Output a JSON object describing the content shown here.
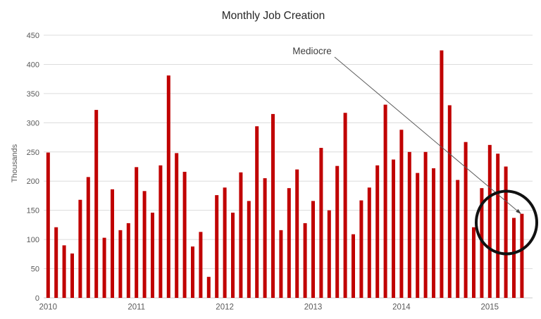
{
  "chart_data": {
    "type": "bar",
    "title": "Monthly Job Creation",
    "ylabel": "Thousands",
    "ylim": [
      0,
      450
    ],
    "y_tick_step": 50,
    "y_ticks": [
      450,
      400,
      350,
      300,
      250,
      200,
      150,
      100,
      50,
      0
    ],
    "x_year_labels": [
      "2010",
      "2011",
      "2012",
      "2013",
      "2014",
      "2015"
    ],
    "x_year_label_bar_index": [
      0,
      11,
      22,
      33,
      44,
      55
    ],
    "values": [
      249,
      121,
      90,
      76,
      168,
      207,
      322,
      103,
      186,
      116,
      128,
      224,
      183,
      146,
      227,
      381,
      248,
      216,
      88,
      113,
      36,
      176,
      189,
      146,
      215,
      166,
      294,
      205,
      315,
      116,
      188,
      220,
      128,
      166,
      257,
      150,
      226,
      317,
      109,
      167,
      189,
      227,
      331,
      237,
      288,
      250,
      214,
      250,
      222,
      424,
      330,
      202,
      267,
      121,
      188,
      262,
      247,
      225,
      137,
      144
    ],
    "grid": "horizontal",
    "legend": "none",
    "annotation": {
      "text": "Mediocre",
      "target_bar_index": 59,
      "circled_bar_indices": [
        56,
        57,
        58,
        59
      ]
    },
    "colors": {
      "bar": "#c00000",
      "grid": "#dcdcdc",
      "tick_text": "#595959",
      "title_text": "#262626",
      "annotation_text": "#3f3f3f",
      "annotation_line": "#595959",
      "circle": "#111111",
      "background": "#ffffff"
    }
  }
}
